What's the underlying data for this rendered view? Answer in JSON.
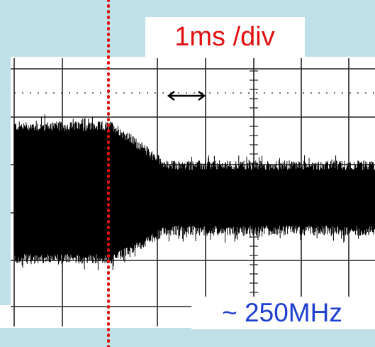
{
  "labels": {
    "timebase": "1ms /div",
    "frequency": "~ 250MHz"
  }
}
